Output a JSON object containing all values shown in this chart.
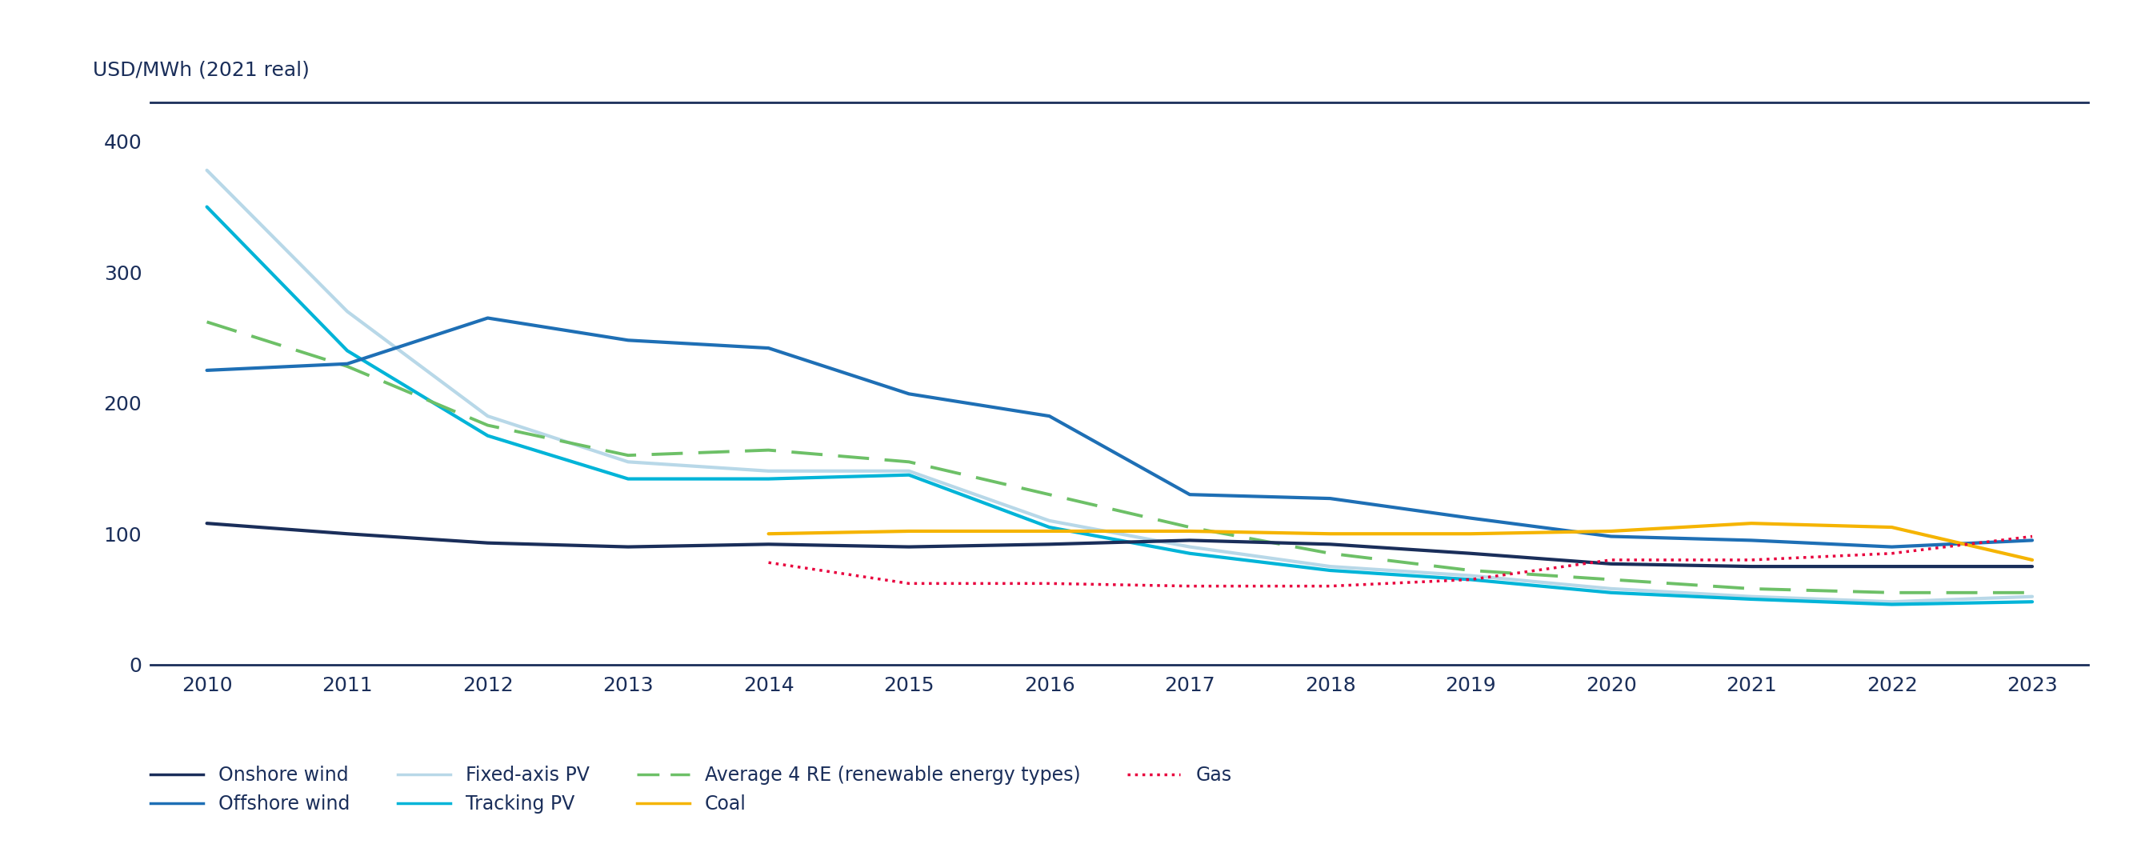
{
  "years": [
    2010,
    2011,
    2012,
    2013,
    2014,
    2015,
    2016,
    2017,
    2018,
    2019,
    2020,
    2021,
    2022,
    2023
  ],
  "onshore_wind": [
    108,
    100,
    93,
    90,
    92,
    90,
    92,
    95,
    92,
    85,
    77,
    75,
    75,
    75
  ],
  "offshore_wind": [
    225,
    230,
    265,
    248,
    242,
    207,
    190,
    130,
    127,
    112,
    98,
    95,
    90,
    95
  ],
  "fixed_axis_pv": [
    378,
    270,
    190,
    155,
    148,
    148,
    110,
    90,
    75,
    68,
    58,
    52,
    48,
    52
  ],
  "tracking_pv": [
    350,
    240,
    175,
    142,
    142,
    145,
    105,
    85,
    72,
    65,
    55,
    50,
    46,
    48
  ],
  "avg_4re": [
    262,
    228,
    183,
    160,
    164,
    155,
    130,
    105,
    85,
    72,
    65,
    58,
    55,
    55
  ],
  "coal": [
    null,
    null,
    null,
    null,
    100,
    102,
    102,
    102,
    100,
    100,
    102,
    108,
    105,
    80
  ],
  "gas": [
    null,
    null,
    null,
    null,
    78,
    62,
    62,
    60,
    60,
    65,
    80,
    80,
    85,
    98
  ],
  "colors": {
    "onshore_wind": "#1a2e5a",
    "offshore_wind": "#1e6fb5",
    "fixed_axis_pv": "#b8d8e8",
    "tracking_pv": "#00b4d8",
    "avg_4re": "#6dc067",
    "coal": "#f5b400",
    "gas": "#e8003d"
  },
  "ylabel": "USD/MWh (2021 real)",
  "ylim": [
    0,
    430
  ],
  "yticks": [
    0,
    100,
    200,
    300,
    400
  ],
  "xlim_left": 2009.6,
  "xlim_right": 2023.4,
  "background_color": "#ffffff",
  "tick_color": "#1a2e5a",
  "spine_color": "#1a2e5a",
  "tick_fontsize": 18,
  "ylabel_fontsize": 18,
  "legend_fontsize": 17,
  "legend": {
    "onshore_wind": "Onshore wind",
    "offshore_wind": "Offshore wind",
    "fixed_axis_pv": "Fixed-axis PV",
    "tracking_pv": "Tracking PV",
    "avg_4re": "Average 4 RE (renewable energy types)",
    "coal": "Coal",
    "gas": "Gas"
  },
  "line_widths": {
    "onshore_wind": 3.0,
    "offshore_wind": 3.0,
    "fixed_axis_pv": 3.0,
    "tracking_pv": 3.0,
    "avg_4re": 2.8,
    "coal": 3.0,
    "gas": 2.5
  }
}
